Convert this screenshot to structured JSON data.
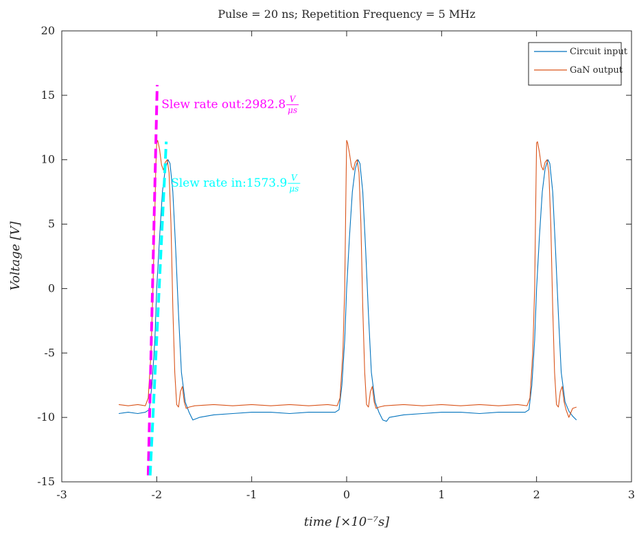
{
  "chart_data": {
    "type": "line",
    "title": "Pulse = 20 ns; Repetition Frequency = 5 MHz",
    "xlabel": "time [×10⁻⁷s]",
    "ylabel": "Voltage [V]",
    "xlim": [
      -3,
      3
    ],
    "ylim": [
      -15,
      20
    ],
    "xticks": [
      -3,
      -2,
      -1,
      0,
      1,
      2,
      3
    ],
    "yticks": [
      -15,
      -10,
      -5,
      0,
      5,
      10,
      15,
      20
    ],
    "legend_position": "top-right",
    "grid": false,
    "series": [
      {
        "name": "Circuit input",
        "color": "#0072BD",
        "x": [
          -2.4,
          -2.3,
          -2.2,
          -2.12,
          -2.08,
          -2.05,
          -2.02,
          -2.0,
          -1.97,
          -1.94,
          -1.91,
          -1.88,
          -1.86,
          -1.83,
          -1.8,
          -1.77,
          -1.74,
          -1.7,
          -1.66,
          -1.62,
          -1.55,
          -1.4,
          -1.2,
          -1.0,
          -0.8,
          -0.6,
          -0.4,
          -0.2,
          -0.12,
          -0.08,
          -0.05,
          -0.02,
          0.0,
          0.03,
          0.06,
          0.09,
          0.12,
          0.14,
          0.17,
          0.2,
          0.23,
          0.26,
          0.3,
          0.34,
          0.38,
          0.42,
          0.45,
          0.6,
          0.8,
          1.0,
          1.2,
          1.4,
          1.6,
          1.8,
          1.88,
          1.92,
          1.95,
          1.98,
          2.0,
          2.03,
          2.06,
          2.09,
          2.12,
          2.14,
          2.17,
          2.2,
          2.23,
          2.26,
          2.3,
          2.34,
          2.38,
          2.42
        ],
        "y": [
          -9.7,
          -9.6,
          -9.7,
          -9.6,
          -9.4,
          -7.5,
          -4.0,
          0.0,
          4.0,
          7.5,
          9.3,
          10.0,
          9.7,
          7.5,
          3.0,
          -2.0,
          -6.5,
          -8.8,
          -9.6,
          -10.2,
          -10.0,
          -9.8,
          -9.7,
          -9.6,
          -9.6,
          -9.7,
          -9.6,
          -9.6,
          -9.6,
          -9.4,
          -7.5,
          -4.0,
          0.0,
          4.0,
          7.5,
          9.3,
          10.0,
          9.7,
          7.5,
          3.0,
          -2.0,
          -6.5,
          -8.8,
          -9.6,
          -10.2,
          -10.3,
          -10.0,
          -9.8,
          -9.7,
          -9.6,
          -9.6,
          -9.7,
          -9.6,
          -9.6,
          -9.6,
          -9.4,
          -7.5,
          -4.0,
          0.0,
          4.0,
          7.5,
          9.3,
          10.0,
          9.7,
          7.5,
          3.0,
          -2.0,
          -6.5,
          -8.8,
          -9.5,
          -9.9,
          -10.2
        ]
      },
      {
        "name": "GaN output",
        "color": "#D95319",
        "x": [
          -2.4,
          -2.3,
          -2.2,
          -2.12,
          -2.09,
          -2.06,
          -2.04,
          -2.02,
          -2.01,
          -2.0,
          -1.99,
          -1.97,
          -1.95,
          -1.93,
          -1.91,
          -1.89,
          -1.87,
          -1.85,
          -1.83,
          -1.81,
          -1.79,
          -1.77,
          -1.75,
          -1.73,
          -1.71,
          -1.69,
          -1.66,
          -1.6,
          -1.4,
          -1.2,
          -1.0,
          -0.8,
          -0.6,
          -0.4,
          -0.2,
          -0.1,
          -0.07,
          -0.04,
          -0.02,
          -0.01,
          0.0,
          0.01,
          0.03,
          0.05,
          0.07,
          0.09,
          0.11,
          0.13,
          0.15,
          0.17,
          0.19,
          0.21,
          0.23,
          0.25,
          0.27,
          0.29,
          0.31,
          0.34,
          0.4,
          0.6,
          0.8,
          1.0,
          1.2,
          1.4,
          1.6,
          1.8,
          1.9,
          1.93,
          1.96,
          1.98,
          1.99,
          2.0,
          2.01,
          2.03,
          2.05,
          2.07,
          2.09,
          2.11,
          2.13,
          2.15,
          2.17,
          2.19,
          2.21,
          2.23,
          2.25,
          2.27,
          2.29,
          2.31,
          2.34,
          2.38,
          2.42
        ],
        "y": [
          -9.0,
          -9.1,
          -9.0,
          -9.1,
          -8.5,
          -5.0,
          0.0,
          6.0,
          9.5,
          11.3,
          11.5,
          10.8,
          9.6,
          9.2,
          9.8,
          10.0,
          9.0,
          5.0,
          -1.5,
          -6.5,
          -9.0,
          -9.2,
          -8.0,
          -7.6,
          -8.8,
          -9.3,
          -9.2,
          -9.1,
          -9.0,
          -9.1,
          -9.0,
          -9.1,
          -9.0,
          -9.1,
          -9.0,
          -9.1,
          -8.5,
          -5.0,
          0.0,
          6.0,
          11.5,
          11.3,
          10.5,
          9.5,
          9.2,
          9.8,
          10.0,
          9.0,
          5.0,
          -1.5,
          -6.5,
          -9.0,
          -9.2,
          -8.0,
          -7.6,
          -8.8,
          -9.3,
          -9.2,
          -9.1,
          -9.0,
          -9.1,
          -9.0,
          -9.1,
          -9.0,
          -9.1,
          -9.0,
          -9.1,
          -8.5,
          -5.0,
          0.0,
          6.0,
          11.3,
          11.4,
          10.6,
          9.5,
          9.2,
          9.8,
          10.0,
          9.0,
          5.0,
          -1.5,
          -6.5,
          -9.0,
          -9.2,
          -8.0,
          -7.6,
          -8.8,
          -9.4,
          -10.0,
          -9.3,
          -9.2
        ]
      },
      {
        "name": "",
        "color": "#FF00FF",
        "style": "dashed",
        "x": [
          -2.09,
          -1.995
        ],
        "y": [
          -14.5,
          15.8
        ]
      },
      {
        "name": "",
        "color": "#00FFFF",
        "style": "dashed",
        "x": [
          -2.07,
          -1.9
        ],
        "y": [
          -14.5,
          11.4
        ]
      }
    ],
    "annotations": [
      {
        "prefix": "Slew rate out:",
        "value": "2982.8",
        "unit_num": "V",
        "unit_den": "μs",
        "color": "#FF00FF",
        "x": -1.95,
        "y": 14.0
      },
      {
        "prefix": "Slew rate in:",
        "value": "1573.9",
        "unit_num": "V",
        "unit_den": "μs",
        "color": "#00FFFF",
        "x": -1.85,
        "y": 7.9
      }
    ]
  }
}
